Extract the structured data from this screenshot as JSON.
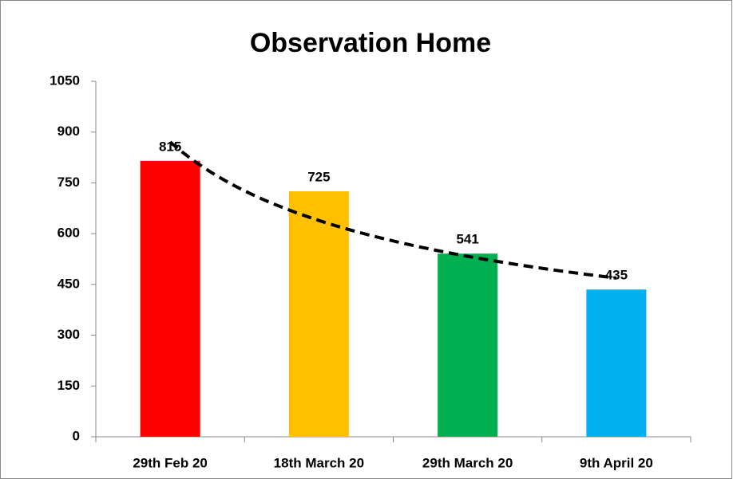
{
  "chart_data": {
    "type": "bar",
    "title": "Observation Home",
    "categories": [
      "29th Feb 20",
      "18th March 20",
      "29th March 20",
      "9th April 20"
    ],
    "values": [
      815,
      725,
      541,
      435
    ],
    "colors": [
      "#ff0000",
      "#ffc000",
      "#00b050",
      "#00b0f0"
    ],
    "ylim": [
      0,
      1050
    ],
    "yticks": [
      0,
      150,
      300,
      450,
      600,
      750,
      900,
      1050
    ],
    "grid": false,
    "data_labels": true,
    "trendline": "power"
  }
}
